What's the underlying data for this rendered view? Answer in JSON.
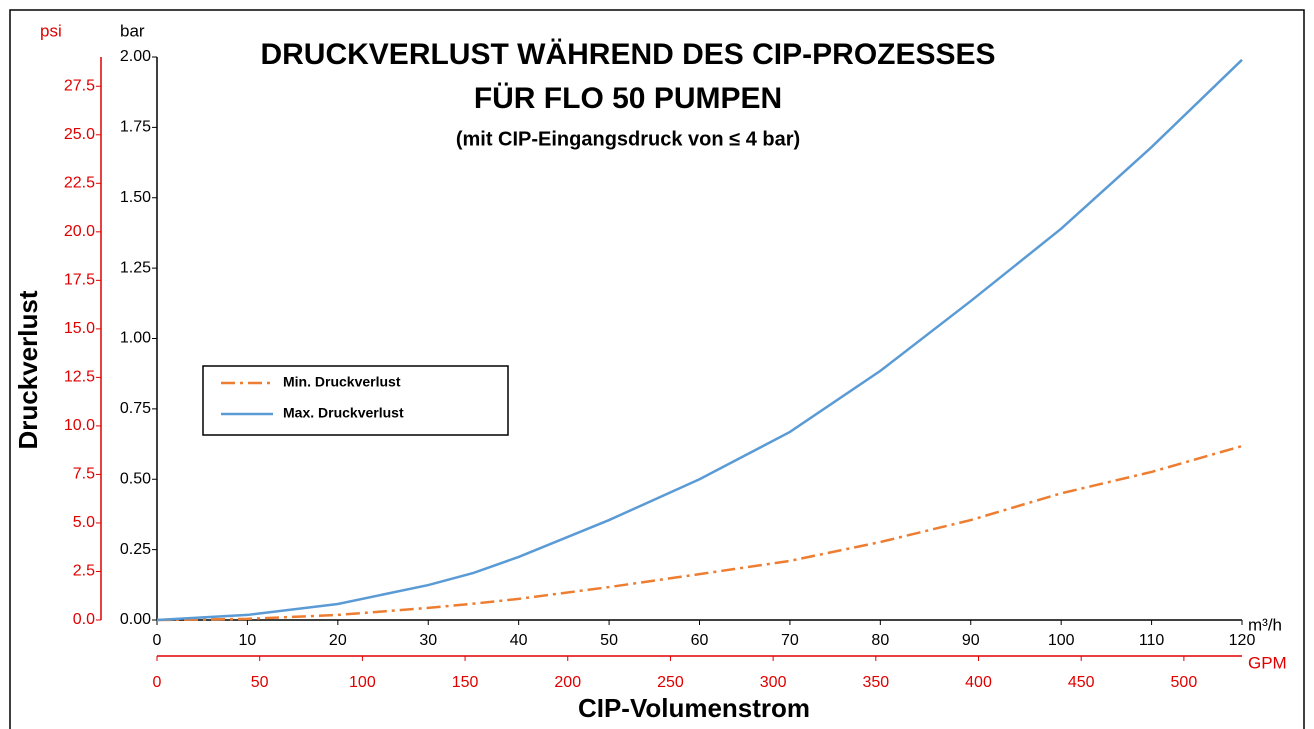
{
  "chart_data": {
    "type": "line",
    "title": [
      "DRUCKVERLUST WÄHREND DES CIP-PROZESSES",
      "FÜR FLO 50 PUMPEN"
    ],
    "subtitle": "(mit CIP-Eingangsdruck von ≤ 4 bar)",
    "y_label": "Druckverlust",
    "x_label": "CIP-Volumenstrom",
    "y_unit": "bar",
    "y2_unit": "psi",
    "x_unit": "m³/h",
    "x2_unit": "GPM",
    "x": [
      0,
      10,
      20,
      30,
      35,
      40,
      50,
      60,
      70,
      80,
      90,
      100,
      110,
      120
    ],
    "series": [
      {
        "name": "Min. Druckverlust",
        "color": "#ed7d31",
        "dash": "dashdot",
        "values": [
          0,
          0.004,
          0.018,
          0.043,
          0.058,
          0.075,
          0.117,
          0.163,
          0.21,
          0.277,
          0.355,
          0.45,
          0.526,
          0.618
        ]
      },
      {
        "name": "Max. Druckverlust",
        "color": "#5b9bd5",
        "dash": "solid",
        "values": [
          0,
          0.018,
          0.057,
          0.124,
          0.167,
          0.224,
          0.355,
          0.5,
          0.668,
          0.885,
          1.133,
          1.39,
          1.68,
          1.99
        ]
      }
    ],
    "xlim": [
      0,
      120
    ],
    "xticks": [
      0,
      10,
      20,
      30,
      40,
      50,
      60,
      70,
      80,
      90,
      100,
      110,
      120
    ],
    "x2lim": [
      0,
      528.3
    ],
    "x2ticks": [
      0,
      50,
      100,
      150,
      200,
      250,
      300,
      350,
      400,
      450,
      500
    ],
    "ylim": [
      0,
      2
    ],
    "yticks": [
      {
        "value": 0,
        "label": "0.00"
      },
      {
        "value": 0.25,
        "label": "0.25"
      },
      {
        "value": 0.5,
        "label": "0.50"
      },
      {
        "value": 0.75,
        "label": "0.75"
      },
      {
        "value": 1,
        "label": "1.00"
      },
      {
        "value": 1.25,
        "label": "1.25"
      },
      {
        "value": 1.5,
        "label": "1.50"
      },
      {
        "value": 1.75,
        "label": "1.75"
      },
      {
        "value": 2,
        "label": "2.00"
      }
    ],
    "y2lim": [
      0,
      29.0076
    ],
    "y2ticks": [
      {
        "value": 0,
        "label": "0.0"
      },
      {
        "value": 2.5,
        "label": "2.5"
      },
      {
        "value": 5,
        "label": "5.0"
      },
      {
        "value": 7.5,
        "label": "7.5"
      },
      {
        "value": 10,
        "label": "10.0"
      },
      {
        "value": 12.5,
        "label": "12.5"
      },
      {
        "value": 15,
        "label": "15.0"
      },
      {
        "value": 17.5,
        "label": "17.5"
      },
      {
        "value": 20,
        "label": "20.0"
      },
      {
        "value": 22.5,
        "label": "22.5"
      },
      {
        "value": 25,
        "label": "25.0"
      },
      {
        "value": 27.5,
        "label": "27.5"
      }
    ],
    "axis2_color": "#e00000",
    "legend": "left"
  }
}
